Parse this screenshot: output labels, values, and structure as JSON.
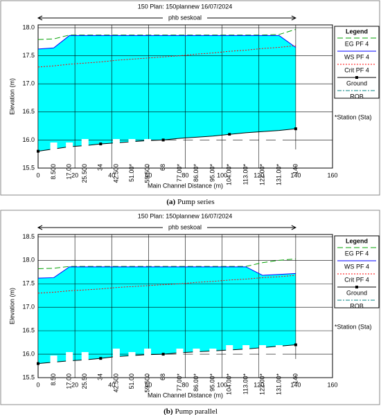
{
  "chart_data": [
    {
      "type": "profile",
      "title": "150     Plan: 150plannew     16/07/2024",
      "reach": "phb seskoal",
      "x_label": "Main Channel Distance (m)",
      "y_label": "Elevation (m)",
      "legend_title": "Legend",
      "note": "*Station (Sta)",
      "caption_label": "(a)",
      "caption": "Pump series",
      "xlim": [
        0,
        160
      ],
      "xticks": [
        0,
        20,
        40,
        60,
        80,
        100,
        120,
        140,
        160
      ],
      "ylim": [
        15.5,
        18.05
      ],
      "yticks": [
        15.5,
        {
          "value": 16,
          "label": "16.0"
        },
        16.5,
        {
          "value": 17,
          "label": "17.0"
        },
        17.5,
        {
          "value": 18,
          "label": "18.0"
        }
      ],
      "grid": true,
      "fill_color": "#00ffff",
      "x": [
        0,
        8.5,
        17,
        25.5,
        34,
        42.5,
        51,
        59.5,
        68,
        77,
        86,
        95,
        104,
        113,
        122,
        131,
        140
      ],
      "station_labels": [
        null,
        "8.500",
        "17.00",
        "25.500",
        "34",
        "42.500",
        "51.00*",
        "59.500",
        "68",
        "77.00*",
        "86.00*",
        "95.00*",
        "104.00*",
        "113.00*",
        "122.00*",
        "131.00*",
        "140"
      ],
      "series": [
        {
          "name": "EG  PF 4",
          "color": "#00a000",
          "values": [
            17.79,
            17.8,
            17.87,
            17.87,
            17.87,
            17.87,
            17.87,
            17.87,
            17.87,
            17.87,
            17.87,
            17.87,
            17.87,
            17.87,
            17.87,
            17.88,
            17.97
          ]
        },
        {
          "name": "WS  PF 4",
          "color": "#0000ff",
          "values": [
            17.62,
            17.64,
            17.86,
            17.86,
            17.86,
            17.86,
            17.86,
            17.86,
            17.86,
            17.86,
            17.86,
            17.86,
            17.86,
            17.86,
            17.86,
            17.86,
            17.65
          ]
        },
        {
          "name": "Crit  PF 4",
          "color": "#ff0000",
          "values": [
            17.3,
            17.32,
            17.35,
            17.37,
            17.39,
            17.42,
            17.44,
            17.46,
            17.48,
            17.5,
            17.53,
            17.55,
            17.58,
            17.6,
            17.63,
            17.65,
            17.68
          ]
        },
        {
          "name": "Ground",
          "color": "#000000",
          "values": [
            15.8,
            15.84,
            15.88,
            15.9,
            15.93,
            15.95,
            15.97,
            15.99,
            16.0,
            16.03,
            16.05,
            16.07,
            16.1,
            16.13,
            16.15,
            16.17,
            16.2
          ]
        },
        {
          "name": "ROB",
          "color": "#008080"
        }
      ]
    },
    {
      "type": "profile",
      "title": "150     Plan: 150plannew     16/07/2024",
      "reach": "phb seskoal",
      "x_label": "Main Channel Distance (m)",
      "y_label": "Elevation (m)",
      "legend_title": "Legend",
      "note": "*Station (Sta)",
      "caption_label": "(b)",
      "caption": "Pump parallel",
      "xlim": [
        0,
        160
      ],
      "xticks": [
        0,
        20,
        40,
        60,
        80,
        100,
        120,
        140,
        160
      ],
      "ylim": [
        15.5,
        18.55
      ],
      "yticks": [
        15.5,
        {
          "value": 16,
          "label": "16.0"
        },
        16.5,
        {
          "value": 17,
          "label": "17.0"
        },
        17.5,
        {
          "value": 18,
          "label": "18.0"
        },
        18.5
      ],
      "grid": true,
      "fill_color": "#00ffff",
      "x": [
        0,
        8.5,
        17,
        25.5,
        34,
        42.5,
        51,
        59.5,
        68,
        77,
        86,
        95,
        104,
        113,
        122,
        131,
        140
      ],
      "station_labels": [
        null,
        "8.50",
        "17.00",
        "25.50",
        "34",
        "42.500",
        "51.00",
        "59.500",
        "68",
        "77.00*",
        "86.00*",
        "95.00*",
        "104.00*",
        "113.00*",
        "122.00*",
        "131.00*",
        "140"
      ],
      "series": [
        {
          "name": "EG  PF 4",
          "color": "#00a000",
          "values": [
            17.82,
            17.83,
            17.87,
            17.87,
            17.87,
            17.87,
            17.87,
            17.87,
            17.87,
            17.87,
            17.87,
            17.87,
            17.87,
            17.87,
            17.95,
            18.0,
            18.03
          ]
        },
        {
          "name": "WS  PF 4",
          "color": "#0000ff",
          "values": [
            17.62,
            17.63,
            17.86,
            17.86,
            17.86,
            17.86,
            17.86,
            17.86,
            17.86,
            17.86,
            17.86,
            17.86,
            17.86,
            17.86,
            17.68,
            17.7,
            17.72
          ]
        },
        {
          "name": "Crit  PF 4",
          "color": "#ff0000",
          "values": [
            17.3,
            17.32,
            17.35,
            17.37,
            17.39,
            17.42,
            17.44,
            17.46,
            17.48,
            17.5,
            17.53,
            17.55,
            17.58,
            17.6,
            17.63,
            17.65,
            17.68
          ]
        },
        {
          "name": "Ground",
          "color": "#000000",
          "values": [
            15.8,
            15.83,
            15.86,
            15.88,
            15.91,
            15.95,
            15.97,
            15.99,
            16.0,
            16.03,
            16.05,
            16.07,
            16.09,
            16.11,
            16.14,
            16.17,
            16.2
          ]
        },
        {
          "name": "ROB",
          "color": "#008080"
        }
      ]
    }
  ]
}
